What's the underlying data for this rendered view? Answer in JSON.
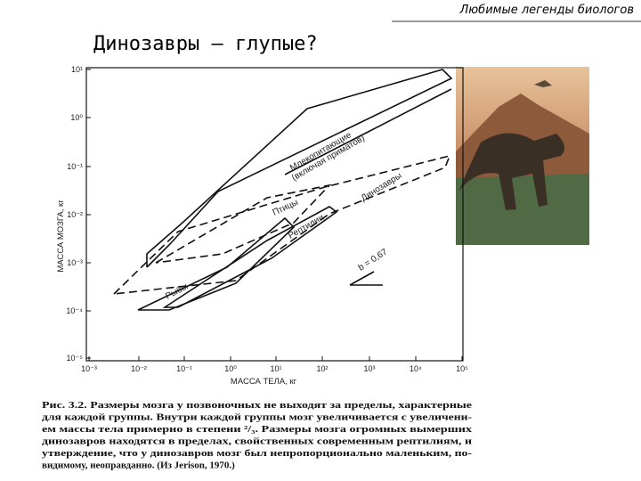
{
  "header": {
    "subtitle": "Любимые легенды биологов",
    "title": "Динозавры – глупые?"
  },
  "figure": {
    "y_axis_label": "МАССА МОЗГА, кг",
    "x_axis_label": "МАССА ТЕЛА, кг",
    "y_tick_labels": [
      "10¹",
      "10⁰",
      "10⁻¹",
      "10⁻²",
      "10⁻³",
      "10⁻⁴",
      "10⁻⁵"
    ],
    "x_tick_labels": [
      "10⁻³",
      "10⁻²",
      "10⁻¹",
      "10⁰",
      "10¹",
      "10²",
      "10³",
      "10⁴",
      "10⁵"
    ],
    "regions": {
      "mammals": "Млекопитающие",
      "mammals_note": "(включая приматов)",
      "dinosaurs": "Динозавры",
      "birds": "Птицы",
      "reptiles": "Рептилии",
      "fish": "Рыбы",
      "slope": "b = 0,67"
    }
  },
  "caption": [
    "Рис. 3.2. Размеры мозга у позвоночных не выходят за пределы, характерные",
    "для каждой группы. Внутри каждой группы мозг увеличивается с увеличени-",
    "ем массы тела примерно в степени ²/₃. Размеры мозга огромных вымерших",
    "динозавров находятся в пределах, свойственных современным рептилиям, и",
    "утверждение, что у динозавров мозг был непропорционально маленьким, по-",
    "видимому, неоправданно. (Из Jerison, 1970.)"
  ]
}
